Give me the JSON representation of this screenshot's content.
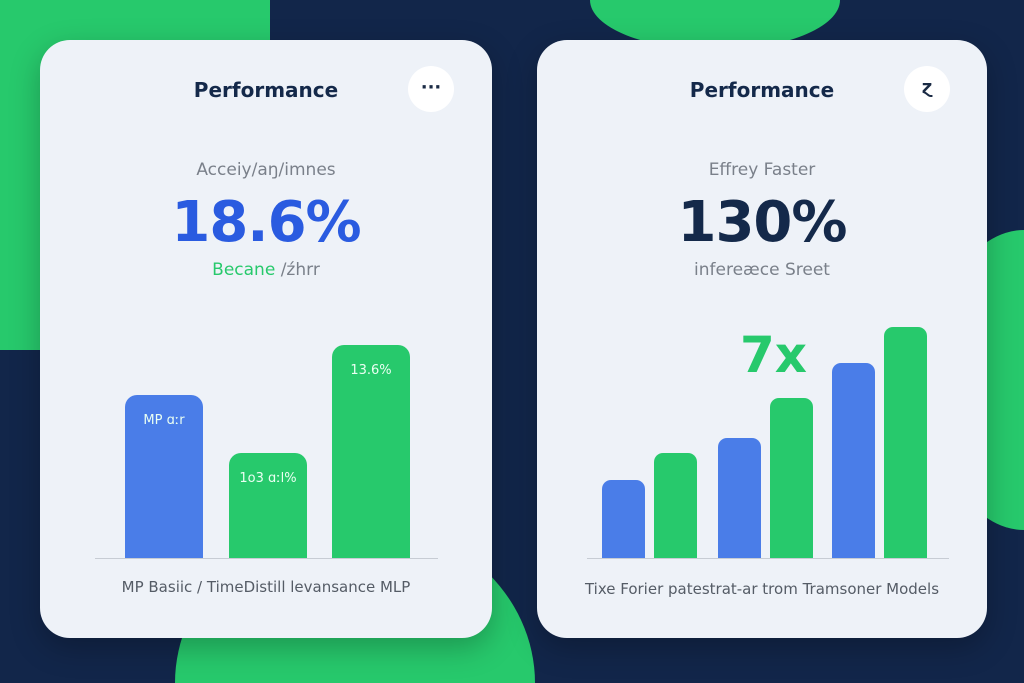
{
  "colors": {
    "background": "#12264a",
    "accent_green": "#27c96c",
    "accent_blue": "#4a7de8",
    "card": "#eef2f8",
    "dark_text": "#14294a"
  },
  "left_card": {
    "title": "Performance",
    "menu_icon": "more-horizontal-icon",
    "menu_glyph": "···",
    "subtitle": "Acceiy/aŋ/imnes",
    "metric": "18.6%",
    "note_green": "Becane",
    "note_gray": "/źhrr",
    "footer": "MP Basiic  /   TimeDistill levansance MLP"
  },
  "right_card": {
    "title": "Performance",
    "menu_icon": "swap-icon",
    "menu_glyph": "ɀ",
    "subtitle": "Effrey Faster",
    "metric": "130%",
    "note": "infereæce Sreet",
    "callout": "7x",
    "footer": "Tixe Forier patestrat-ar trom Tramsoner Models"
  },
  "chart_data": [
    {
      "type": "bar",
      "categories": [
        "MP ɑːr",
        "1o3 ɑːl%",
        "13.6%"
      ],
      "values": [
        163,
        105,
        213
      ],
      "colors": [
        "#4a7de8",
        "#27c96c",
        "#27c96c"
      ],
      "bar_labels": [
        "MP ɑːr",
        "1o3 ɑːl%",
        "13.6%"
      ],
      "grid": false
    },
    {
      "type": "bar",
      "series": [
        {
          "color": "#4a7de8",
          "values": [
            78,
            120,
            195
          ]
        },
        {
          "color": "#27c96c",
          "values": [
            105,
            160,
            231
          ]
        }
      ],
      "annotation": "7x",
      "grid": false
    }
  ]
}
